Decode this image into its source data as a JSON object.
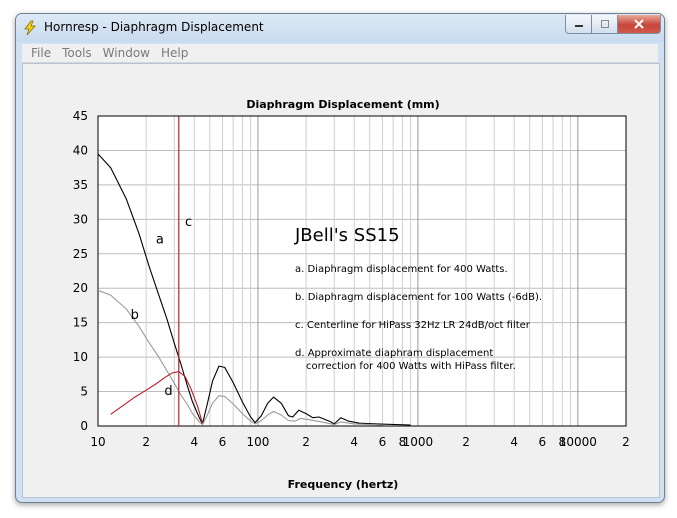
{
  "window": {
    "title": "Hornresp - Diaphragm Displacement",
    "icon": "lightning-icon",
    "controls": [
      "minimize-icon",
      "maximize-icon",
      "close-icon"
    ]
  },
  "menu": [
    "File",
    "Tools",
    "Window",
    "Help"
  ],
  "chart_data": {
    "type": "line",
    "title": "Diaphragm Displacement (mm)",
    "xlabel": "Frequency (hertz)",
    "ylabel": "",
    "x_scale": "log",
    "xlim": [
      10,
      20000
    ],
    "ylim": [
      0,
      45
    ],
    "yticks": [
      "0",
      "5",
      "10",
      "15",
      "20",
      "25",
      "30",
      "35",
      "40",
      "45"
    ],
    "xticks": [
      {
        "x": 10,
        "label": "10"
      },
      {
        "x": 20,
        "label": "2"
      },
      {
        "x": 40,
        "label": "4"
      },
      {
        "x": 60,
        "label": "6"
      },
      {
        "x": 100,
        "label": "100"
      },
      {
        "x": 200,
        "label": "2"
      },
      {
        "x": 400,
        "label": "4"
      },
      {
        "x": 600,
        "label": "6"
      },
      {
        "x": 800,
        "label": "8"
      },
      {
        "x": 1000,
        "label": "1000"
      },
      {
        "x": 2000,
        "label": "2"
      },
      {
        "x": 4000,
        "label": "4"
      },
      {
        "x": 6000,
        "label": "6"
      },
      {
        "x": 8000,
        "label": "8"
      },
      {
        "x": 10000,
        "label": "10000"
      },
      {
        "x": 20000,
        "label": "2"
      }
    ],
    "grid": true,
    "series": [
      {
        "label": "a",
        "color": "#000000",
        "points": [
          [
            10,
            39.5
          ],
          [
            12,
            37.5
          ],
          [
            15,
            33
          ],
          [
            18,
            28
          ],
          [
            21,
            23
          ],
          [
            24,
            19
          ],
          [
            27,
            15.5
          ],
          [
            30,
            12
          ],
          [
            33,
            9
          ],
          [
            36,
            6
          ],
          [
            39,
            3.5
          ],
          [
            43,
            1.2
          ],
          [
            45,
            0.3
          ],
          [
            48,
            3
          ],
          [
            52,
            6.5
          ],
          [
            57,
            8.7
          ],
          [
            62,
            8.5
          ],
          [
            70,
            6.3
          ],
          [
            80,
            3.5
          ],
          [
            90,
            1.3
          ],
          [
            96,
            0.5
          ],
          [
            105,
            1.5
          ],
          [
            115,
            3.3
          ],
          [
            125,
            4.2
          ],
          [
            140,
            3.3
          ],
          [
            155,
            1.5
          ],
          [
            165,
            1.3
          ],
          [
            180,
            2.3
          ],
          [
            200,
            1.8
          ],
          [
            220,
            1.2
          ],
          [
            240,
            1.3
          ],
          [
            280,
            0.7
          ],
          [
            300,
            0.3
          ],
          [
            330,
            1.2
          ],
          [
            370,
            0.7
          ],
          [
            430,
            0.4
          ],
          [
            550,
            0.3
          ],
          [
            900,
            0.15
          ]
        ]
      },
      {
        "label": "b",
        "color": "#9a9a9a",
        "points": [
          [
            10,
            19.7
          ],
          [
            12,
            19
          ],
          [
            15,
            17
          ],
          [
            18,
            14.5
          ],
          [
            21,
            12
          ],
          [
            24,
            10
          ],
          [
            27,
            8
          ],
          [
            30,
            6.2
          ],
          [
            33,
            4.5
          ],
          [
            36,
            3.2
          ],
          [
            39,
            1.8
          ],
          [
            43,
            0.6
          ],
          [
            45,
            0.2
          ],
          [
            48,
            1.5
          ],
          [
            52,
            3.3
          ],
          [
            57,
            4.4
          ],
          [
            62,
            4.3
          ],
          [
            70,
            3.2
          ],
          [
            80,
            1.8
          ],
          [
            90,
            0.7
          ],
          [
            96,
            0.3
          ],
          [
            105,
            0.8
          ],
          [
            115,
            1.6
          ],
          [
            125,
            2.1
          ],
          [
            140,
            1.6
          ],
          [
            155,
            0.8
          ],
          [
            170,
            0.7
          ],
          [
            185,
            1.1
          ],
          [
            210,
            0.9
          ],
          [
            250,
            0.6
          ],
          [
            300,
            0.2
          ],
          [
            330,
            0.6
          ],
          [
            400,
            0.3
          ],
          [
            600,
            0.15
          ]
        ]
      },
      {
        "label": "d",
        "color": "#b8202a",
        "points": [
          [
            12,
            1.7
          ],
          [
            14,
            2.8
          ],
          [
            17,
            4.2
          ],
          [
            20,
            5.2
          ],
          [
            23,
            6.1
          ],
          [
            26,
            7
          ],
          [
            29,
            7.7
          ],
          [
            32,
            7.9
          ],
          [
            35,
            7.2
          ],
          [
            38,
            5.5
          ],
          [
            42,
            2.8
          ],
          [
            45,
            0.4
          ]
        ]
      }
    ],
    "vline": {
      "label": "c",
      "x": 32,
      "color": "#b8202a"
    },
    "curve_labels": [
      {
        "text": "a",
        "x": 23,
        "y": 26.5
      },
      {
        "text": "b",
        "x": 16,
        "y": 15.5
      },
      {
        "text": "c",
        "x": 35,
        "y": 29
      },
      {
        "text": "d",
        "x": 26,
        "y": 4.5
      }
    ],
    "annotation": {
      "heading": "JBell's SS15",
      "lines": [
        "a. Diaphragm displacement for 400 Watts.",
        "b. Diaphragm displacement for 100 Watts (-6dB).",
        "c. Centerline for HiPass 32Hz LR 24dB/oct filter",
        "d. Approximate diaphram displacement",
        "correction for 400 Watts with HiPass filter."
      ]
    }
  }
}
